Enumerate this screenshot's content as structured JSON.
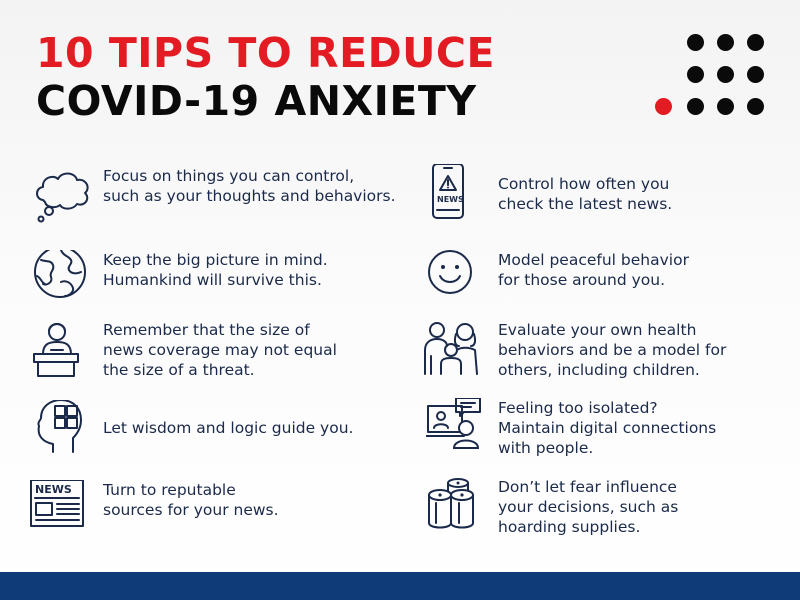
{
  "title": {
    "line1": "10 TIPS TO REDUCE",
    "line2": "COVID-19 ANXIETY",
    "line1_color": "#e31b23",
    "line2_color": "#0a0a0a"
  },
  "colors": {
    "text": "#1b2a4a",
    "footer_bar": "#0f3b78",
    "accent_dot": "#e31b23"
  },
  "tips": [
    {
      "icon": "thought-cloud-icon",
      "lines": [
        "Focus on things you can control,",
        "such as your thoughts and behaviors."
      ]
    },
    {
      "icon": "globe-icon",
      "lines": [
        "Keep the big picture in mind.",
        "Humankind will survive this."
      ]
    },
    {
      "icon": "news-anchor-icon",
      "lines": [
        "Remember that the size of",
        "news coverage may not equal",
        "the size of a threat."
      ]
    },
    {
      "icon": "head-puzzle-icon",
      "lines": [
        "Let wisdom and logic guide you."
      ]
    },
    {
      "icon": "newspaper-icon",
      "lines": [
        "Turn to reputable",
        "sources for your news."
      ]
    },
    {
      "icon": "phone-news-alert-icon",
      "lines": [
        "Control how often you",
        "check the latest news."
      ],
      "icon_text": "NEWS"
    },
    {
      "icon": "smiley-face-icon",
      "lines": [
        "Model peaceful behavior",
        "for those around you."
      ]
    },
    {
      "icon": "family-icon",
      "lines": [
        "Evaluate your own health",
        "behaviors and be a model for",
        "others, including children."
      ]
    },
    {
      "icon": "video-call-icon",
      "lines": [
        "Feeling too isolated?",
        "Maintain digital connections",
        "with people."
      ]
    },
    {
      "icon": "toilet-paper-rolls-icon",
      "lines": [
        "Don’t let fear influence",
        "your decisions, such as",
        "hoarding supplies."
      ]
    }
  ],
  "newspaper_icon_text": "NEWS"
}
